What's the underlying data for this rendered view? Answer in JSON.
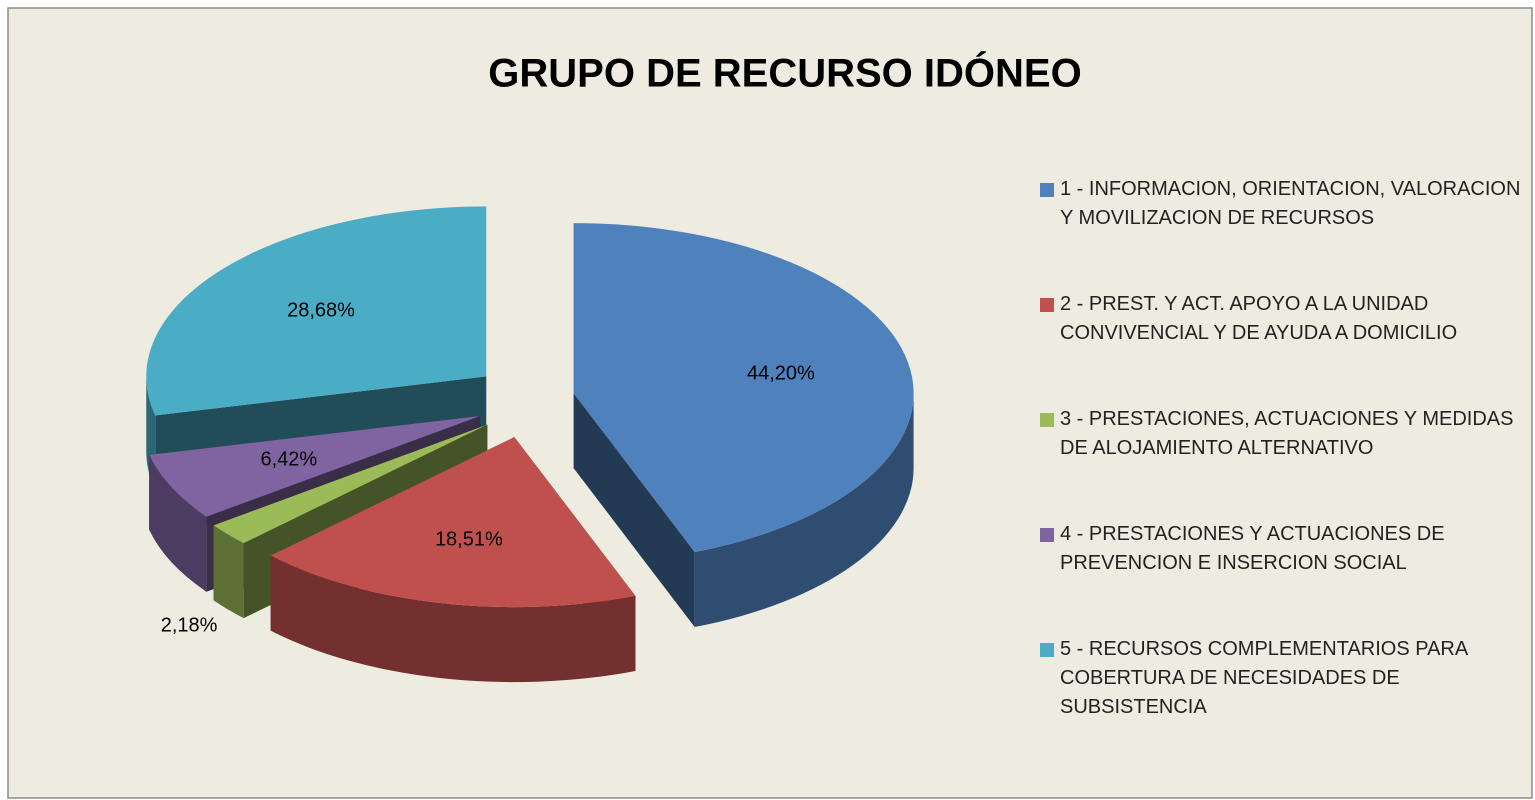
{
  "chart_data": {
    "type": "pie",
    "title": "GRUPO DE RECURSO IDÓNEO",
    "categories": [
      "1 - INFORMACION, ORIENTACION, VALORACION Y MOVILIZACION DE RECURSOS",
      "2 - PREST. Y ACT. APOYO A LA UNIDAD CONVIVENCIAL Y DE AYUDA A DOMICILIO",
      "3 - PRESTACIONES, ACTUACIONES Y MEDIDAS DE ALOJAMIENTO ALTERNATIVO",
      "4 - PRESTACIONES Y ACTUACIONES DE PREVENCION E INSERCION SOCIAL",
      "5 - RECURSOS COMPLEMENTARIOS PARA COBERTURA DE NECESIDADES DE SUBSISTENCIA"
    ],
    "values": [
      44.2,
      18.51,
      2.18,
      6.42,
      28.68
    ],
    "value_labels": [
      "44,20%",
      "18,51%",
      "2,18%",
      "6,42%",
      "28,68%"
    ],
    "colors": [
      "#4f81bd",
      "#c0504d",
      "#9bbb59",
      "#8064a2",
      "#4bacc6"
    ],
    "legend": "right"
  }
}
